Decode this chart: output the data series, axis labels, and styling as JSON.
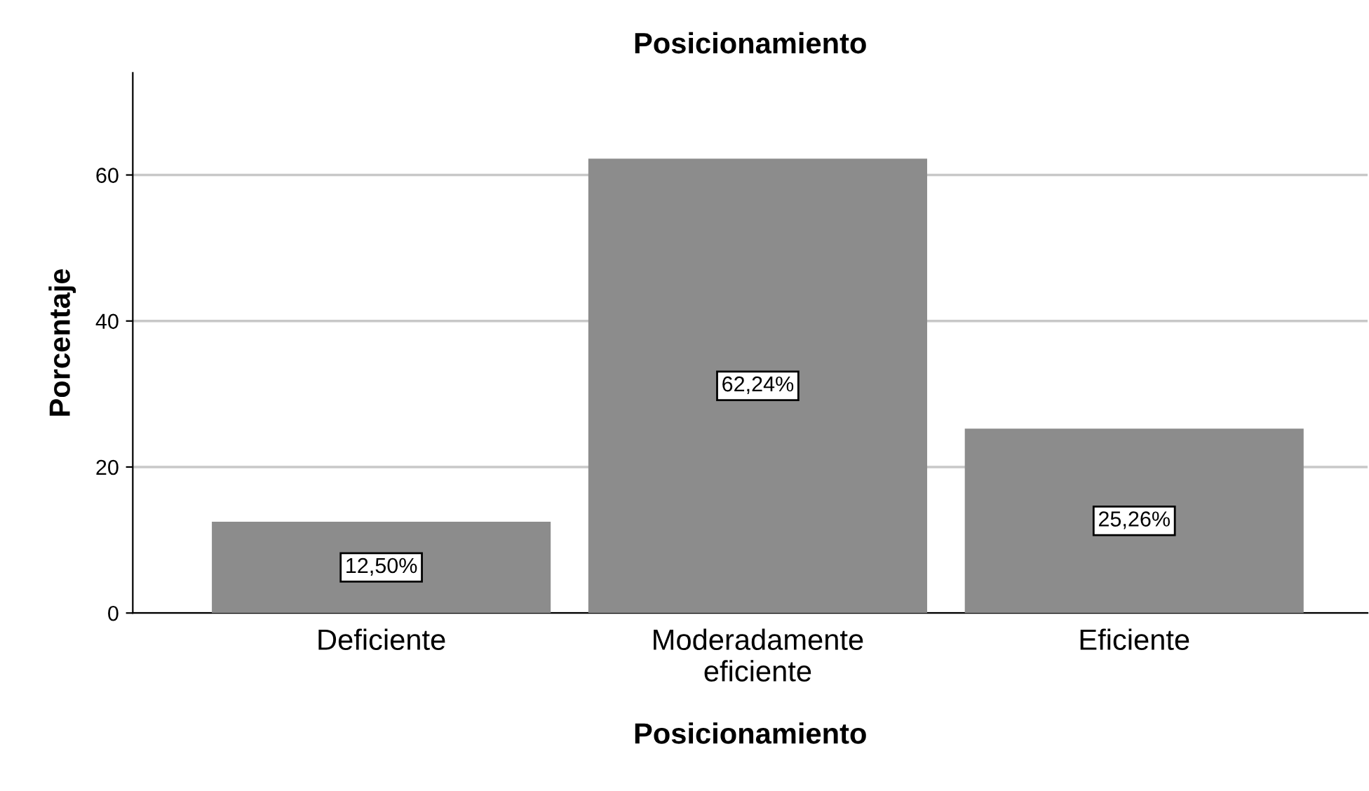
{
  "chart_data": {
    "type": "bar",
    "title": "Posicionamiento",
    "xlabel": "Posicionamiento",
    "ylabel": "Porcentaje",
    "categories": [
      "Deficiente",
      "Moderadamente\neficiente",
      "Eficiente"
    ],
    "values": [
      12.5,
      62.24,
      25.26
    ],
    "value_labels": [
      "12,50%",
      "62,24%",
      "25,26%"
    ],
    "color": "#8c8c8c",
    "ylim": [
      0,
      74
    ],
    "yticks": [
      0,
      20,
      40,
      60
    ],
    "grid": "y"
  }
}
